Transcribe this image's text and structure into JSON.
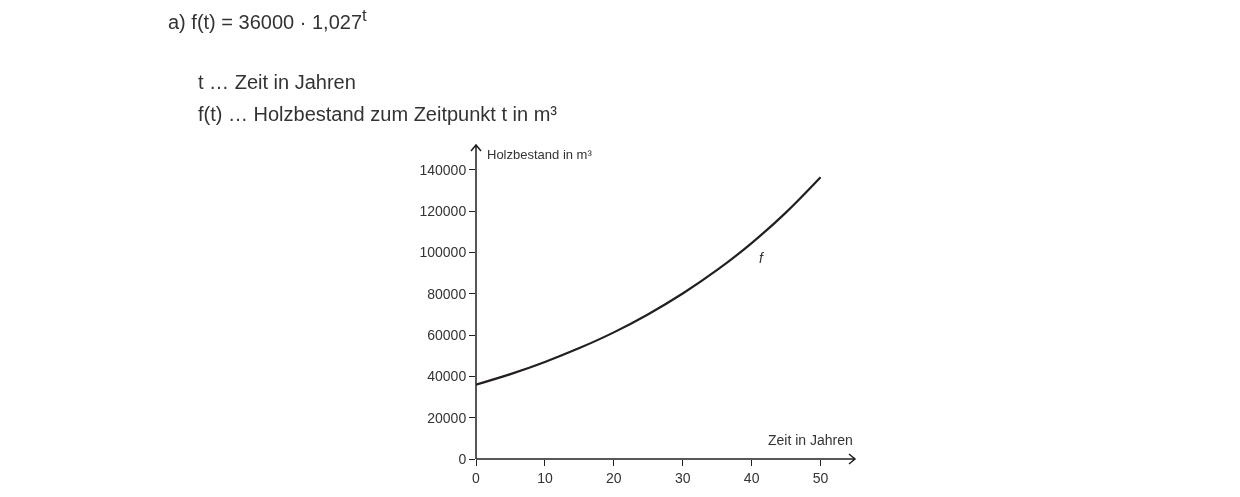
{
  "chart_data": {
    "type": "line",
    "title": "a) f(t) = 36000 · 1,027$^{t}$",
    "subtitle": "t … Zeit in Jahren\nf(t) … Holzbestand zum Zeitpunkt t in m³",
    "xlabel": "Zeit in Jahren",
    "ylabel": "Holzbestand in m³",
    "x": [
      0,
      5,
      10,
      15,
      20,
      25,
      30,
      35,
      40,
      45,
      50
    ],
    "series": [
      {
        "name": "f",
        "color": "#231f20",
        "values": [
          36000,
          41100,
          47000,
          53700,
          61300,
          70100,
          80100,
          91500,
          104500,
          119400,
          136400
        ]
      }
    ],
    "xlim": [
      0,
      55
    ],
    "xticks": [
      0,
      10,
      20,
      30,
      40,
      50
    ],
    "ylim": [
      0,
      152000
    ],
    "yticks": [
      0,
      20000,
      40000,
      60000,
      80000,
      100000,
      120000,
      140000
    ],
    "grid": false,
    "legend": false,
    "marker": "none",
    "line_style": "solid"
  }
}
